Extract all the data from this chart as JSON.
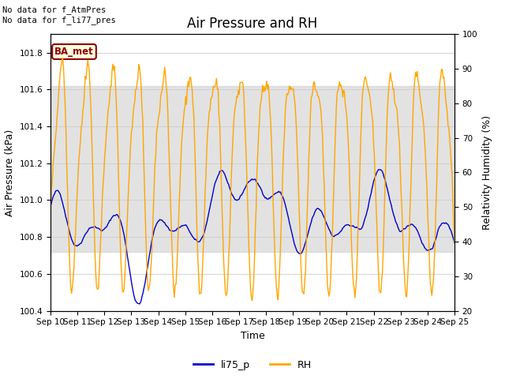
{
  "title": "Air Pressure and RH",
  "xlabel": "Time",
  "ylabel_left": "Air Pressure (kPa)",
  "ylabel_right": "Relativity Humidity (%)",
  "text_top_left_line1": "No data for f_AtmPres",
  "text_top_left_line2": "No data for f_li77_pres",
  "annotation_box": "BA_met",
  "xlim": [
    0,
    15.0
  ],
  "ylim_left": [
    100.4,
    101.9
  ],
  "ylim_right": [
    20,
    100
  ],
  "yticks_left": [
    100.4,
    100.6,
    100.8,
    101.0,
    101.2,
    101.4,
    101.6,
    101.8
  ],
  "yticks_right": [
    20,
    30,
    40,
    50,
    60,
    70,
    80,
    90,
    100
  ],
  "xtick_labels": [
    "Sep 10",
    "Sep 11",
    "Sep 12",
    "Sep 13",
    "Sep 14",
    "Sep 15",
    "Sep 16",
    "Sep 17",
    "Sep 18",
    "Sep 19",
    "Sep 20",
    "Sep 21",
    "Sep 22",
    "Sep 23",
    "Sep 24",
    "Sep 25"
  ],
  "line_color_blue": "#0000cc",
  "line_color_orange": "#FFA500",
  "legend_labels": [
    "li75_p",
    "RH"
  ],
  "shading_y1": 100.72,
  "shading_y2": 101.62,
  "title_fontsize": 12,
  "label_fontsize": 9,
  "tick_fontsize": 7.5,
  "annotation_fontsize": 8.5
}
